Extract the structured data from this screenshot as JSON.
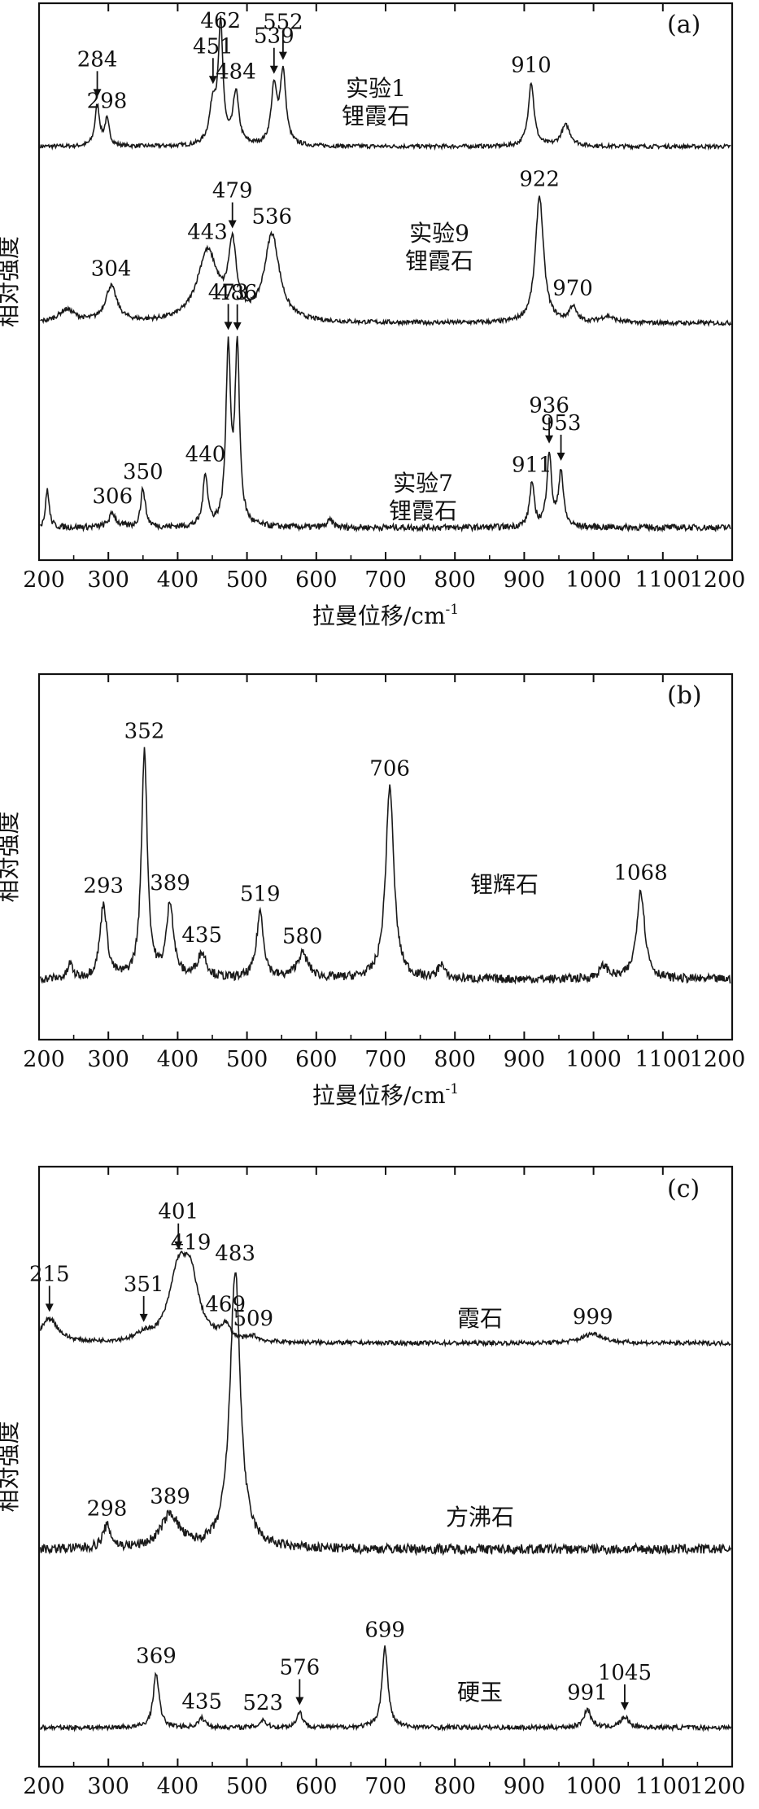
{
  "chart_data": [
    {
      "panel": "(a)",
      "type": "line",
      "xlabel": "拉曼位移/cm",
      "xlabel_sup": "-1",
      "ylabel": "相对强度",
      "xlim": [
        200,
        1200
      ],
      "xticks": [
        200,
        300,
        400,
        500,
        600,
        700,
        800,
        900,
        1000,
        1100,
        1200
      ],
      "series": [
        {
          "name": "实验1",
          "name2": "锂霞石",
          "peaks": [
            {
              "x": 284,
              "h": 0.35,
              "w": 4,
              "label": "284",
              "arrow": true
            },
            {
              "x": 298,
              "h": 0.22,
              "w": 4,
              "label": "298"
            },
            {
              "x": 451,
              "h": 0.35,
              "w": 6,
              "label": "451",
              "arrow": true
            },
            {
              "x": 462,
              "h": 1.0,
              "w": 4,
              "label": "462"
            },
            {
              "x": 484,
              "h": 0.45,
              "w": 5,
              "label": "484"
            },
            {
              "x": 539,
              "h": 0.48,
              "w": 5,
              "label": "539",
              "arrow": true
            },
            {
              "x": 552,
              "h": 0.62,
              "w": 5,
              "label": "552",
              "arrow": true
            },
            {
              "x": 910,
              "h": 0.55,
              "w": 5,
              "label": "910"
            },
            {
              "x": 960,
              "h": 0.18,
              "w": 8
            }
          ]
        },
        {
          "name": "实验9",
          "name2": "锂霞石",
          "peaks": [
            {
              "x": 304,
              "h": 0.28,
              "w": 10,
              "label": "304"
            },
            {
              "x": 443,
              "h": 0.55,
              "w": 18,
              "label": "443"
            },
            {
              "x": 479,
              "h": 0.55,
              "w": 7,
              "label": "479",
              "arrow": true
            },
            {
              "x": 536,
              "h": 0.68,
              "w": 13,
              "label": "536"
            },
            {
              "x": 922,
              "h": 1.0,
              "w": 7,
              "label": "922"
            },
            {
              "x": 970,
              "h": 0.12,
              "w": 6,
              "label": "970"
            },
            {
              "x": 240,
              "h": 0.1,
              "w": 14
            },
            {
              "x": 1020,
              "h": 0.05,
              "w": 12
            }
          ]
        },
        {
          "name": "实验7",
          "name2": "锂霞石",
          "peaks": [
            {
              "x": 212,
              "h": 0.22,
              "w": 3
            },
            {
              "x": 306,
              "h": 0.08,
              "w": 6,
              "label": "306"
            },
            {
              "x": 350,
              "h": 0.22,
              "w": 4,
              "label": "350"
            },
            {
              "x": 440,
              "h": 0.3,
              "w": 4,
              "label": "440"
            },
            {
              "x": 473,
              "h": 1.0,
              "w": 4,
              "label": "473",
              "arrow": true
            },
            {
              "x": 486,
              "h": 1.0,
              "w": 4,
              "label": "486",
              "arrow": true
            },
            {
              "x": 911,
              "h": 0.25,
              "w": 4,
              "label": "911"
            },
            {
              "x": 936,
              "h": 0.42,
              "w": 4,
              "label": "936",
              "arrow": true
            },
            {
              "x": 953,
              "h": 0.32,
              "w": 4,
              "label": "953",
              "arrow": true
            },
            {
              "x": 620,
              "h": 0.04,
              "w": 5
            }
          ]
        }
      ]
    },
    {
      "panel": "(b)",
      "type": "line",
      "xlabel": "拉曼位移/cm",
      "xlabel_sup": "-1",
      "ylabel": "相对强度",
      "xlim": [
        200,
        1200
      ],
      "xticks": [
        200,
        300,
        400,
        500,
        600,
        700,
        800,
        900,
        1000,
        1100,
        1200
      ],
      "series": [
        {
          "name": "锂辉石",
          "peaks": [
            {
              "x": 293,
              "h": 0.3,
              "w": 6,
              "label": "293"
            },
            {
              "x": 352,
              "h": 0.92,
              "w": 5,
              "label": "352"
            },
            {
              "x": 389,
              "h": 0.3,
              "w": 6,
              "label": "389"
            },
            {
              "x": 435,
              "h": 0.1,
              "w": 8,
              "label": "435"
            },
            {
              "x": 519,
              "h": 0.27,
              "w": 6,
              "label": "519"
            },
            {
              "x": 580,
              "h": 0.1,
              "w": 10,
              "label": "580"
            },
            {
              "x": 706,
              "h": 0.78,
              "w": 7,
              "label": "706"
            },
            {
              "x": 1068,
              "h": 0.36,
              "w": 7,
              "label": "1068"
            },
            {
              "x": 245,
              "h": 0.06,
              "w": 4
            },
            {
              "x": 780,
              "h": 0.06,
              "w": 5
            },
            {
              "x": 1015,
              "h": 0.05,
              "w": 8
            }
          ]
        }
      ]
    },
    {
      "panel": "(c)",
      "type": "line",
      "xlabel": "拉曼位移/cm",
      "xlabel_sup": "-1",
      "ylabel": "相对强度",
      "xlim": [
        200,
        1200
      ],
      "xticks": [
        200,
        300,
        400,
        500,
        600,
        700,
        800,
        900,
        1000,
        1100,
        1200
      ],
      "series": [
        {
          "name": "霞石",
          "peaks": [
            {
              "x": 215,
              "h": 0.2,
              "w": 15,
              "label": "215",
              "arrow": true
            },
            {
              "x": 351,
              "h": 0.05,
              "w": 10,
              "label": "351",
              "arrow": true
            },
            {
              "x": 401,
              "h": 0.55,
              "w": 16,
              "label": "401",
              "arrow": true
            },
            {
              "x": 419,
              "h": 0.45,
              "w": 14,
              "label": "419"
            },
            {
              "x": 469,
              "h": 0.12,
              "w": 8,
              "label": "469"
            },
            {
              "x": 509,
              "h": 0.04,
              "w": 8,
              "label": "509"
            },
            {
              "x": 999,
              "h": 0.08,
              "w": 18,
              "label": "999"
            }
          ]
        },
        {
          "name": "方沸石",
          "peaks": [
            {
              "x": 298,
              "h": 0.08,
              "w": 7,
              "label": "298"
            },
            {
              "x": 389,
              "h": 0.12,
              "w": 16,
              "label": "389"
            },
            {
              "x": 483,
              "h": 1.0,
              "w": 9,
              "label": "483"
            }
          ]
        },
        {
          "name": "硬玉",
          "peaks": [
            {
              "x": 369,
              "h": 0.42,
              "w": 5,
              "label": "369"
            },
            {
              "x": 435,
              "h": 0.07,
              "w": 6,
              "label": "435"
            },
            {
              "x": 523,
              "h": 0.06,
              "w": 5,
              "label": "523"
            },
            {
              "x": 576,
              "h": 0.12,
              "w": 5,
              "label": "576",
              "arrow": true
            },
            {
              "x": 699,
              "h": 0.62,
              "w": 5,
              "label": "699"
            },
            {
              "x": 991,
              "h": 0.14,
              "w": 6,
              "label": "991"
            },
            {
              "x": 1045,
              "h": 0.08,
              "w": 7,
              "label": "1045",
              "arrow": true
            }
          ]
        }
      ]
    }
  ]
}
